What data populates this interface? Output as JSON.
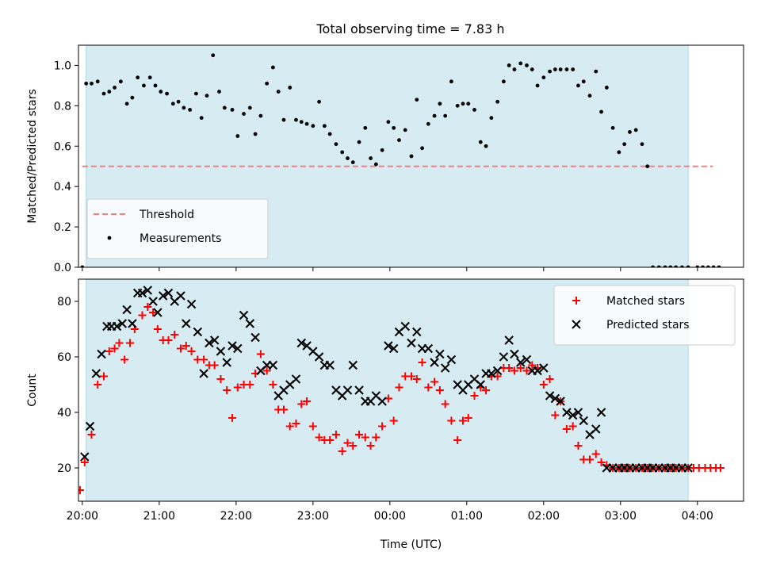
{
  "title": "Total observing time = 7.83 h",
  "chart_data": [
    {
      "type": "scatter",
      "ylabel": "Matched/Predicted stars",
      "xlim": [
        -0.05,
        8.6
      ],
      "ylim": [
        0.0,
        1.1
      ],
      "yticks": [
        "0.0",
        "0.2",
        "0.4",
        "0.6",
        "0.8",
        "1.0"
      ],
      "shaded_span": [
        0.05,
        7.88
      ],
      "threshold": {
        "name": "Threshold",
        "y": 0.5,
        "x_range": [
          0.0,
          8.2
        ],
        "color": "#f08080"
      },
      "legend_position": "lower-left",
      "series": [
        {
          "name": "Measurements",
          "color": "#000000",
          "x": [
            0.0,
            0.05,
            0.12,
            0.2,
            0.28,
            0.35,
            0.42,
            0.5,
            0.58,
            0.65,
            0.72,
            0.8,
            0.88,
            0.95,
            1.02,
            1.1,
            1.18,
            1.25,
            1.32,
            1.4,
            1.48,
            1.55,
            1.62,
            1.7,
            1.78,
            1.85,
            1.95,
            2.02,
            2.1,
            2.18,
            2.25,
            2.32,
            2.4,
            2.48,
            2.55,
            2.62,
            2.7,
            2.78,
            2.85,
            2.92,
            3.0,
            3.08,
            3.15,
            3.22,
            3.3,
            3.38,
            3.45,
            3.52,
            3.6,
            3.68,
            3.75,
            3.82,
            3.9,
            3.98,
            4.05,
            4.12,
            4.2,
            4.28,
            4.35,
            4.42,
            4.5,
            4.58,
            4.65,
            4.72,
            4.8,
            4.88,
            4.95,
            5.02,
            5.1,
            5.18,
            5.25,
            5.32,
            5.4,
            5.48,
            5.55,
            5.62,
            5.7,
            5.78,
            5.85,
            5.92,
            6.0,
            6.08,
            6.15,
            6.22,
            6.3,
            6.38,
            6.45,
            6.52,
            6.6,
            6.68,
            6.75,
            6.82,
            6.9,
            6.98,
            7.05,
            7.12,
            7.2,
            7.28,
            7.35,
            7.42,
            7.5,
            7.58,
            7.65,
            7.72,
            7.8,
            7.88,
            8.0,
            8.07,
            8.14,
            8.21,
            8.28
          ],
          "y": [
            0.0,
            0.91,
            0.91,
            0.92,
            0.86,
            0.87,
            0.89,
            0.92,
            0.81,
            0.84,
            0.94,
            0.9,
            0.94,
            0.9,
            0.87,
            0.86,
            0.81,
            0.82,
            0.79,
            0.78,
            0.86,
            0.74,
            0.85,
            1.05,
            0.87,
            0.79,
            0.78,
            0.65,
            0.76,
            0.79,
            0.66,
            0.75,
            0.91,
            0.99,
            0.87,
            0.73,
            0.89,
            0.73,
            0.72,
            0.71,
            0.7,
            0.82,
            0.7,
            0.66,
            0.61,
            0.57,
            0.54,
            0.52,
            0.62,
            0.69,
            0.54,
            0.51,
            0.58,
            0.72,
            0.69,
            0.63,
            0.68,
            0.55,
            0.83,
            0.59,
            0.71,
            0.75,
            0.81,
            0.75,
            0.92,
            0.8,
            0.81,
            0.81,
            0.78,
            0.62,
            0.6,
            0.74,
            0.82,
            0.92,
            1.0,
            0.98,
            1.01,
            1.0,
            0.98,
            0.9,
            0.94,
            0.97,
            0.98,
            0.98,
            0.98,
            0.98,
            0.9,
            0.92,
            0.85,
            0.97,
            0.77,
            0.89,
            0.69,
            0.57,
            0.61,
            0.67,
            0.68,
            0.61,
            0.5,
            0.0,
            0.0,
            0.0,
            0.0,
            0.0,
            0.0,
            0.0,
            0.0,
            0.0,
            0.0,
            0.0,
            0.0
          ]
        }
      ]
    },
    {
      "type": "scatter",
      "xlabel": "Time (UTC)",
      "ylabel": "Count",
      "xlim": [
        -0.05,
        8.6
      ],
      "ylim": [
        8,
        88
      ],
      "yticks": [
        "20",
        "40",
        "60",
        "80"
      ],
      "xticks": [
        {
          "x": 0,
          "label": "20:00"
        },
        {
          "x": 1,
          "label": "21:00"
        },
        {
          "x": 2,
          "label": "22:00"
        },
        {
          "x": 3,
          "label": "23:00"
        },
        {
          "x": 4,
          "label": "00:00"
        },
        {
          "x": 5,
          "label": "01:00"
        },
        {
          "x": 6,
          "label": "02:00"
        },
        {
          "x": 7,
          "label": "03:00"
        },
        {
          "x": 8,
          "label": "04:00"
        }
      ],
      "shaded_span": [
        0.05,
        7.88
      ],
      "legend_position": "upper-right",
      "series": [
        {
          "name": "Matched stars",
          "marker": "plus",
          "color": "#ff0000",
          "x": [
            -0.03,
            0.03,
            0.12,
            0.2,
            0.28,
            0.35,
            0.42,
            0.48,
            0.55,
            0.62,
            0.68,
            0.78,
            0.85,
            0.92,
            0.98,
            1.05,
            1.12,
            1.2,
            1.28,
            1.35,
            1.42,
            1.5,
            1.58,
            1.65,
            1.72,
            1.8,
            1.88,
            1.95,
            2.02,
            2.1,
            2.18,
            2.25,
            2.32,
            2.4,
            2.48,
            2.55,
            2.62,
            2.7,
            2.78,
            2.85,
            2.92,
            3.0,
            3.08,
            3.15,
            3.22,
            3.3,
            3.38,
            3.45,
            3.52,
            3.6,
            3.68,
            3.75,
            3.82,
            3.9,
            3.98,
            4.05,
            4.12,
            4.2,
            4.28,
            4.35,
            4.42,
            4.5,
            4.58,
            4.65,
            4.72,
            4.8,
            4.88,
            4.95,
            5.02,
            5.1,
            5.18,
            5.25,
            5.32,
            5.4,
            5.48,
            5.55,
            5.62,
            5.7,
            5.78,
            5.85,
            5.92,
            6.0,
            6.08,
            6.15,
            6.22,
            6.3,
            6.38,
            6.45,
            6.52,
            6.6,
            6.68,
            6.75,
            6.82,
            6.9,
            6.98,
            7.05,
            7.12,
            7.2,
            7.28,
            7.35,
            7.42,
            7.5,
            7.58,
            7.65,
            7.72,
            7.8,
            7.88,
            7.95,
            8.02,
            8.1,
            8.17,
            8.24,
            8.3
          ],
          "y": [
            12,
            22,
            32,
            50,
            53,
            62,
            63,
            65,
            59,
            65,
            70,
            75,
            78,
            76,
            70,
            66,
            66,
            68,
            63,
            64,
            62,
            59,
            59,
            57,
            57,
            52,
            48,
            38,
            49,
            50,
            50,
            54,
            61,
            55,
            50,
            41,
            41,
            35,
            36,
            43,
            44,
            35,
            31,
            30,
            30,
            32,
            26,
            29,
            28,
            32,
            31,
            28,
            31,
            35,
            45,
            37,
            49,
            53,
            53,
            52,
            58,
            49,
            51,
            48,
            43,
            37,
            30,
            37,
            38,
            46,
            49,
            48,
            53,
            53,
            56,
            56,
            55,
            56,
            55,
            57,
            56,
            50,
            52,
            39,
            44,
            34,
            35,
            28,
            23,
            23,
            25,
            22,
            21,
            20,
            20,
            20,
            20,
            20,
            20,
            20,
            20,
            20,
            20,
            20,
            20,
            20,
            20,
            20,
            20,
            20,
            20,
            20,
            20
          ]
        },
        {
          "name": "Predicted stars",
          "marker": "x",
          "color": "#000000",
          "x": [
            0.03,
            0.1,
            0.18,
            0.25,
            0.32,
            0.38,
            0.45,
            0.52,
            0.58,
            0.65,
            0.72,
            0.78,
            0.85,
            0.92,
            0.98,
            1.05,
            1.12,
            1.2,
            1.28,
            1.35,
            1.42,
            1.5,
            1.58,
            1.65,
            1.72,
            1.8,
            1.88,
            1.95,
            2.02,
            2.1,
            2.18,
            2.25,
            2.32,
            2.4,
            2.48,
            2.55,
            2.62,
            2.7,
            2.78,
            2.85,
            2.92,
            3.0,
            3.08,
            3.15,
            3.22,
            3.3,
            3.38,
            3.45,
            3.52,
            3.6,
            3.68,
            3.75,
            3.82,
            3.9,
            3.98,
            4.05,
            4.12,
            4.2,
            4.28,
            4.35,
            4.42,
            4.5,
            4.58,
            4.65,
            4.72,
            4.8,
            4.88,
            4.95,
            5.02,
            5.1,
            5.18,
            5.25,
            5.32,
            5.4,
            5.48,
            5.55,
            5.62,
            5.7,
            5.78,
            5.85,
            5.92,
            6.0,
            6.08,
            6.15,
            6.22,
            6.3,
            6.38,
            6.45,
            6.52,
            6.6,
            6.68,
            6.75,
            6.82,
            6.9,
            6.98,
            7.05,
            7.12,
            7.2,
            7.28,
            7.35,
            7.42,
            7.5,
            7.58,
            7.65,
            7.72,
            7.8,
            7.88
          ],
          "y": [
            24,
            35,
            54,
            61,
            71,
            71,
            71,
            72,
            77,
            72,
            83,
            83,
            84,
            80,
            76,
            82,
            83,
            80,
            82,
            72,
            79,
            69,
            54,
            65,
            66,
            62,
            58,
            64,
            63,
            75,
            72,
            67,
            55,
            57,
            57,
            46,
            48,
            50,
            52,
            65,
            64,
            62,
            60,
            57,
            57,
            48,
            46,
            48,
            57,
            48,
            44,
            44,
            46,
            44,
            64,
            63,
            69,
            71,
            65,
            69,
            63,
            63,
            58,
            61,
            56,
            59,
            50,
            48,
            50,
            52,
            50,
            54,
            54,
            55,
            60,
            66,
            61,
            58,
            59,
            55,
            55,
            56,
            46,
            45,
            44,
            40,
            39,
            40,
            37,
            32,
            34,
            40,
            20,
            20,
            20,
            20,
            20,
            20,
            20,
            20,
            20,
            20,
            20,
            20,
            20,
            20,
            20
          ]
        }
      ]
    }
  ]
}
